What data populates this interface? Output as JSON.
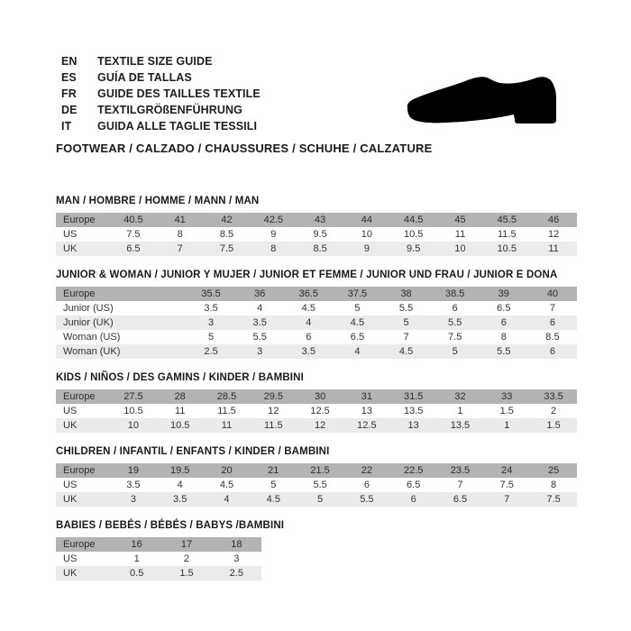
{
  "languages": [
    {
      "code": "EN",
      "text": "TEXTILE SIZE GUIDE"
    },
    {
      "code": "ES",
      "text": "GUÍA DE TALLAS"
    },
    {
      "code": "FR",
      "text": "GUIDE DES TAILLES TEXTILE"
    },
    {
      "code": "DE",
      "text": "TEXTILGRÖßENFÜHRUNG"
    },
    {
      "code": "IT",
      "text": "GUIDA ALLE TAGLIE TESSILI"
    }
  ],
  "category_heading": "FOOTWEAR / CALZADO / CHAUSSURES / SCHUHE / CALZATURE",
  "shoe_icon": "dress-shoe-silhouette",
  "colors": {
    "header_row_bg": "#b3b3b3",
    "stripe_row_bg": "#ebebeb",
    "text": "#333333",
    "title_text": "#1a1a1a",
    "shoe_fill": "#000000"
  },
  "tables": [
    {
      "title": "MAN / HOMBRE / HOMME / MANN / MAN",
      "header_label": "Europe",
      "header_values": [
        "40.5",
        "41",
        "42",
        "42.5",
        "43",
        "44",
        "44.5",
        "45",
        "45.5",
        "46"
      ],
      "rows": [
        {
          "label": "US",
          "values": [
            "7.5",
            "8",
            "8.5",
            "9",
            "9.5",
            "10",
            "10.5",
            "11",
            "11.5",
            "12"
          ]
        },
        {
          "label": "UK",
          "values": [
            "6.5",
            "7",
            "7.5",
            "8",
            "8.5",
            "9",
            "9.5",
            "10",
            "10.5",
            "11"
          ]
        }
      ]
    },
    {
      "title": "JUNIOR & WOMAN / JUNIOR Y MUJER / JUNIOR ET FEMME / JUNIOR UND FRAU / JUNIOR E DONA",
      "header_label": "Europe",
      "header_values": [
        "35.5",
        "36",
        "36.5",
        "37.5",
        "38",
        "38.5",
        "39",
        "40"
      ],
      "rows": [
        {
          "label": "Junior (US)",
          "values": [
            "3.5",
            "4",
            "4.5",
            "5",
            "5.5",
            "6",
            "6.5",
            "7"
          ]
        },
        {
          "label": "Junior (UK)",
          "values": [
            "3",
            "3.5",
            "4",
            "4.5",
            "5",
            "5.5",
            "6",
            "6"
          ]
        },
        {
          "label": "Woman (US)",
          "values": [
            "5",
            "5.5",
            "6",
            "6.5",
            "7",
            "7.5",
            "8",
            "8.5"
          ]
        },
        {
          "label": "Woman (UK)",
          "values": [
            "2.5",
            "3",
            "3.5",
            "4",
            "4.5",
            "5",
            "5.5",
            "6"
          ]
        }
      ]
    },
    {
      "title": "KIDS / NIÑOS / DES GAMINS / KINDER / BAMBINI",
      "header_label": "Europe",
      "header_values": [
        "27.5",
        "28",
        "28.5",
        "29.5",
        "30",
        "31",
        "31.5",
        "32",
        "33",
        "33.5"
      ],
      "rows": [
        {
          "label": "US",
          "values": [
            "10.5",
            "11",
            "11.5",
            "12",
            "12.5",
            "13",
            "13.5",
            "1",
            "1.5",
            "2"
          ]
        },
        {
          "label": "UK",
          "values": [
            "10",
            "10.5",
            "11",
            "11.5",
            "12",
            "12.5",
            "13",
            "13.5",
            "1",
            "1.5"
          ]
        }
      ]
    },
    {
      "title": "CHILDREN / INFANTIL / ENFANTS / KINDER / BAMBINI",
      "header_label": "Europe",
      "header_values": [
        "19",
        "19.5",
        "20",
        "21",
        "21.5",
        "22",
        "22.5",
        "23.5",
        "24",
        "25"
      ],
      "rows": [
        {
          "label": "US",
          "values": [
            "3.5",
            "4",
            "4.5",
            "5",
            "5.5",
            "6",
            "6.5",
            "7",
            "7.5",
            "8"
          ]
        },
        {
          "label": "UK",
          "values": [
            "3",
            "3.5",
            "4",
            "4.5",
            "5",
            "5.5",
            "6",
            "6.5",
            "7",
            "7.5"
          ]
        }
      ]
    },
    {
      "title": "BABIES  / BEBÉS / BÉBÉS / BABYS /BAMBINI",
      "header_label": "Europe",
      "header_values": [
        "16",
        "17",
        "18"
      ],
      "rows": [
        {
          "label": "US",
          "values": [
            "1",
            "2",
            "3"
          ]
        },
        {
          "label": "UK",
          "values": [
            "0.5",
            "1.5",
            "2.5"
          ]
        }
      ]
    }
  ]
}
